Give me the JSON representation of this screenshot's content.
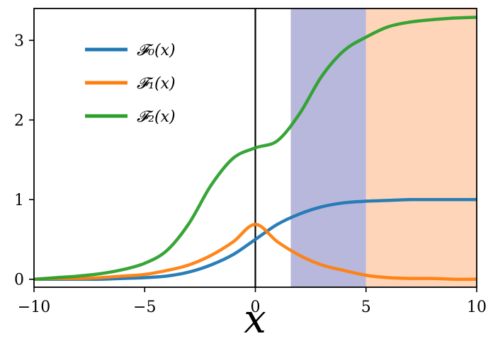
{
  "chart_data": {
    "type": "line",
    "xlabel": "x",
    "ylabel": "",
    "xlim": [
      -10,
      10
    ],
    "ylim": [
      -0.1,
      3.4
    ],
    "xticks": [
      -10,
      -5,
      0,
      5,
      10
    ],
    "xtick_labels": [
      "−10",
      "−5",
      "0",
      "5",
      "10"
    ],
    "yticks": [
      0,
      1,
      2,
      3
    ],
    "ytick_labels": [
      "0",
      "1",
      "2",
      "3"
    ],
    "grid": false,
    "legend_position": "upper-left",
    "vline_x": 0,
    "shaded_regions": [
      {
        "x_start": 1.6,
        "x_end": 5,
        "color": "#b7b8dc"
      },
      {
        "x_start": 5,
        "x_end": 10,
        "color": "#fed5b8"
      }
    ],
    "series": [
      {
        "name": "𝓕₀(x)",
        "color": "#1f77b4",
        "x": [
          -10,
          -9,
          -8,
          -7,
          -6,
          -5,
          -4,
          -3,
          -2,
          -1,
          0,
          1,
          2,
          3,
          4,
          5,
          6,
          7,
          8,
          9,
          10
        ],
        "y": [
          0.0,
          0.0,
          0.0,
          0.0,
          0.01,
          0.02,
          0.04,
          0.09,
          0.18,
          0.31,
          0.5,
          0.69,
          0.82,
          0.91,
          0.96,
          0.98,
          0.99,
          1.0,
          1.0,
          1.0,
          1.0
        ]
      },
      {
        "name": "𝓕₁(x)",
        "color": "#ff7f0e",
        "x": [
          -10,
          -9,
          -8,
          -7,
          -6,
          -5,
          -4,
          -3,
          -2,
          -1,
          0,
          1,
          2,
          3,
          4,
          5,
          6,
          7,
          8,
          9,
          10
        ],
        "y": [
          0.0,
          0.01,
          0.01,
          0.02,
          0.04,
          0.06,
          0.11,
          0.18,
          0.3,
          0.47,
          0.69,
          0.47,
          0.3,
          0.18,
          0.11,
          0.05,
          0.02,
          0.01,
          0.01,
          0.0,
          0.0
        ]
      },
      {
        "name": "𝓕₂(x)",
        "color": "#2ca02c",
        "x": [
          -10,
          -9,
          -8,
          -7,
          -6,
          -5,
          -4,
          -3,
          -2,
          -1,
          0,
          1,
          2,
          3,
          4,
          5,
          6,
          7,
          8,
          9,
          10
        ],
        "y": [
          0.0,
          0.02,
          0.04,
          0.07,
          0.12,
          0.2,
          0.36,
          0.7,
          1.18,
          1.52,
          1.65,
          1.74,
          2.08,
          2.55,
          2.87,
          3.04,
          3.17,
          3.23,
          3.26,
          3.28,
          3.29
        ]
      }
    ]
  }
}
